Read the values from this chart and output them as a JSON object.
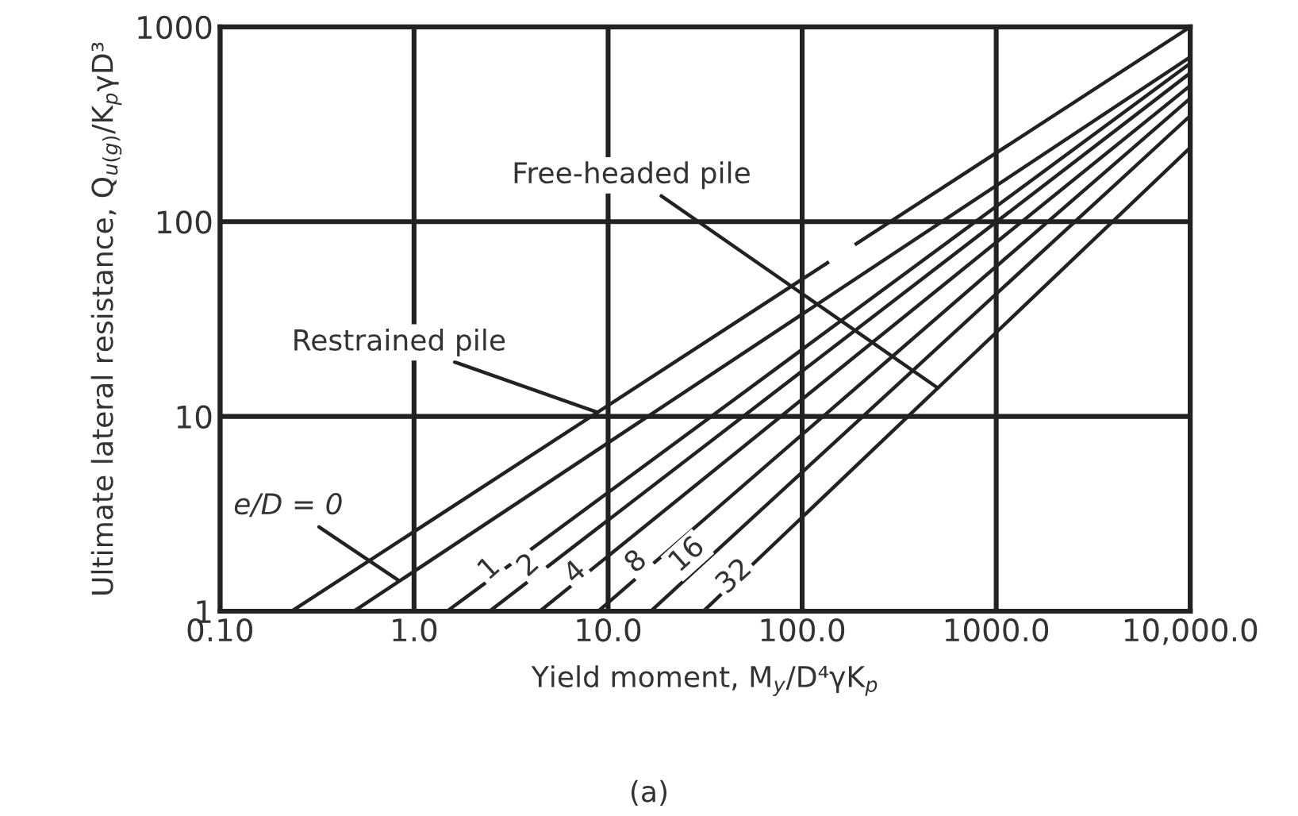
{
  "chart_data": {
    "type": "line",
    "subtitle": "(a)",
    "xlabel": "Yield moment, M$_{y}$/D⁴γK$_{p}$",
    "ylabel": "Ultimate lateral resistance, Q$_{u(g)}$/K$_{p}$γD³",
    "log": "xy",
    "grid": true,
    "marker": "none",
    "line_style": "solid",
    "legend": false,
    "xlim": [
      0.1,
      10000
    ],
    "ylim": [
      1,
      1000
    ],
    "xticks": [
      {
        "value": 0.1,
        "label": "0.10"
      },
      {
        "value": 1,
        "label": "1.0"
      },
      {
        "value": 10,
        "label": "10.0"
      },
      {
        "value": 100,
        "label": "100.0"
      },
      {
        "value": 1000,
        "label": "1000.0"
      },
      {
        "value": 10000,
        "label": "10,000.0"
      }
    ],
    "yticks": [
      1,
      10,
      100,
      1000
    ],
    "series": [
      {
        "color": "#222222",
        "x": [
          0.234,
          135,
          160,
          190,
          10000
        ],
        "values": [
          1,
          61.5,
          null,
          77,
          1000
        ]
      },
      {
        "color": "#222222",
        "x": [
          0.49,
          10000
        ],
        "values": [
          1,
          700
        ]
      },
      {
        "color": "#222222",
        "x": [
          1.48,
          10000
        ],
        "values": [
          1,
          650
        ]
      },
      {
        "color": "#222222",
        "x": [
          2.45,
          10000
        ],
        "values": [
          1,
          580
        ]
      },
      {
        "color": "#222222",
        "x": [
          4.45,
          10000
        ],
        "values": [
          1,
          500
        ]
      },
      {
        "color": "#222222",
        "x": [
          8.9,
          10000
        ],
        "values": [
          1,
          430
        ]
      },
      {
        "color": "#222222",
        "x": [
          16.6,
          10000
        ],
        "values": [
          1,
          350
        ]
      },
      {
        "color": "#222222",
        "x": [
          31,
          10000
        ],
        "values": [
          1,
          240
        ]
      }
    ],
    "annotations": [
      {
        "text": "Free-headed pile",
        "x": 500,
        "y": 14
      },
      {
        "text": "Restrained pile",
        "x": 8.8,
        "y": 10.5
      },
      {
        "text": "e/D = 0",
        "x": 0.84,
        "y": 1.43
      },
      {
        "text": "1",
        "x": 2.45,
        "y": 1.64
      },
      {
        "text": "2",
        "x": 3.9,
        "y": 1.71
      },
      {
        "text": "4",
        "x": 6.8,
        "y": 1.57
      },
      {
        "text": "8",
        "x": 14,
        "y": 1.78
      },
      {
        "text": "16",
        "x": 25.6,
        "y": 1.94
      },
      {
        "text": "32",
        "x": 44.8,
        "y": 1.5
      }
    ]
  }
}
